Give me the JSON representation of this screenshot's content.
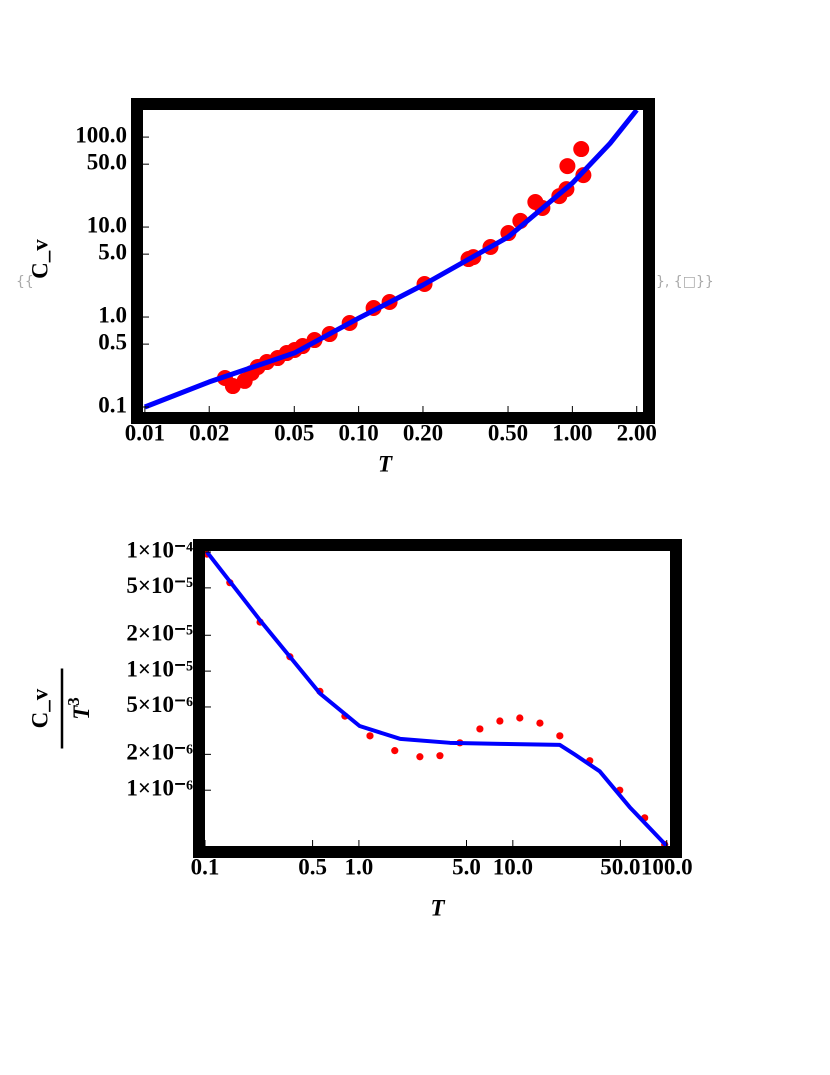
{
  "wrapper": {
    "open": "{{",
    "close": "}, {□}}"
  },
  "chart_data": [
    {
      "type": "scatter",
      "xlabel": "T",
      "ylabel": "C_v",
      "xscale": "log",
      "yscale": "log",
      "frame_color": "#000000",
      "xlim": [
        0.0098,
        2.14
      ],
      "ylim": [
        0.088,
        200
      ],
      "xticks": [
        {
          "value": 0.01,
          "label": "0.01"
        },
        {
          "value": 0.02,
          "label": "0.02"
        },
        {
          "value": 0.05,
          "label": "0.05"
        },
        {
          "value": 0.1,
          "label": "0.10"
        },
        {
          "value": 0.2,
          "label": "0.20"
        },
        {
          "value": 0.5,
          "label": "0.50"
        },
        {
          "value": 1,
          "label": "1.00"
        },
        {
          "value": 2,
          "label": "2.00"
        }
      ],
      "yticks": [
        {
          "value": 100,
          "label": "100.0"
        },
        {
          "value": 50,
          "label": "50.0"
        },
        {
          "value": 10,
          "label": "10.0"
        },
        {
          "value": 5,
          "label": "5.0"
        },
        {
          "value": 1,
          "label": "1.0"
        },
        0.5,
        0.1
      ],
      "series": [
        {
          "mode": "markers",
          "color": "#ff0000",
          "x": [
            0.0237,
            0.0258,
            0.0293,
            0.0316,
            0.0337,
            0.0372,
            0.0418,
            0.0461,
            0.0502,
            0.0547,
            0.0622,
            0.0732,
            0.0908,
            0.1175,
            0.1396,
            0.2034,
            0.3266,
            0.344,
            0.414,
            0.502,
            0.571,
            0.671,
            0.724,
            0.869,
            0.938,
            0.948,
            1.1,
            1.126
          ],
          "values": [
            0.21,
            0.171,
            0.195,
            0.239,
            0.278,
            0.316,
            0.35,
            0.398,
            0.43,
            0.476,
            0.555,
            0.647,
            0.858,
            1.26,
            1.47,
            2.33,
            4.41,
            4.64,
            6.0,
            8.58,
            11.7,
            19.0,
            16.3,
            22.1,
            26.4,
            47.6,
            73.6,
            37.8
          ]
        },
        {
          "mode": "line",
          "color": "#0000ff",
          "x": [
            0.01,
            0.02,
            0.05,
            0.1,
            0.2,
            0.5,
            1.0,
            1.5,
            2.0
          ],
          "values": [
            0.1,
            0.19,
            0.398,
            0.97,
            2.27,
            7.74,
            30.8,
            85,
            200
          ]
        }
      ]
    },
    {
      "type": "scatter",
      "xlabel": "T",
      "ylabel_numerator": "C_v",
      "ylabel_denominator": "T",
      "ylabel_exponent": "3",
      "xscale": "log",
      "yscale": "log",
      "frame_color": "#000000",
      "xlim": [
        0.1,
        105
      ],
      "ylim": [
        3.4e-07,
        0.000102
      ],
      "xticks": [
        0.1,
        0.5,
        {
          "value": 1,
          "label": "1.0"
        },
        {
          "value": 5,
          "label": "5.0"
        },
        {
          "value": 10,
          "label": "10.0"
        },
        {
          "value": 50,
          "label": "50.0"
        },
        {
          "value": 100,
          "label": "100.0"
        }
      ],
      "yticks": [
        {
          "value": 0.0001,
          "label": "1×10⁻⁴"
        },
        {
          "value": 5e-05,
          "label": "5×10⁻⁵"
        },
        {
          "value": 2e-05,
          "label": "2×10⁻⁵"
        },
        {
          "value": 1e-05,
          "label": "1×10⁻⁵"
        },
        {
          "value": 5e-06,
          "label": "5×10⁻⁶"
        },
        {
          "value": 2e-06,
          "label": "2×10⁻⁶"
        },
        {
          "value": 1e-06,
          "label": "1×10⁻⁶"
        }
      ],
      "series": [
        {
          "mode": "markers",
          "color": "#ff0000",
          "x": [
            0.103,
            0.145,
            0.228,
            0.356,
            0.558,
            0.811,
            1.18,
            1.71,
            2.49,
            3.36,
            4.53,
            6.11,
            8.24,
            11.1,
            15.0,
            20.2,
            31.6,
            49.5,
            71.9,
            97.0
          ],
          "values": [
            9.6e-05,
            5.53e-05,
            2.58e-05,
            1.32e-05,
            6.76e-06,
            4.19e-06,
            2.86e-06,
            2.15e-06,
            1.91e-06,
            1.95e-06,
            2.5e-06,
            3.27e-06,
            3.81e-06,
            4.04e-06,
            3.66e-06,
            2.86e-06,
            1.77e-06,
            1e-06,
            5.86e-07,
            3.5e-07
          ]
        },
        {
          "mode": "line",
          "color": "#0000ff",
          "x": [
            0.103,
            0.228,
            0.558,
            1.01,
            1.85,
            3.9,
            8.24,
            20.2,
            25.3,
            36.7,
            57.5,
            100
          ],
          "values": [
            0.0001,
            2.67e-05,
            6.5e-06,
            3.46e-06,
            2.7e-06,
            2.5e-06,
            2.45e-06,
            2.4e-06,
            1.99e-06,
            1.44e-06,
            7.2e-07,
            3.4e-07
          ]
        }
      ]
    }
  ]
}
